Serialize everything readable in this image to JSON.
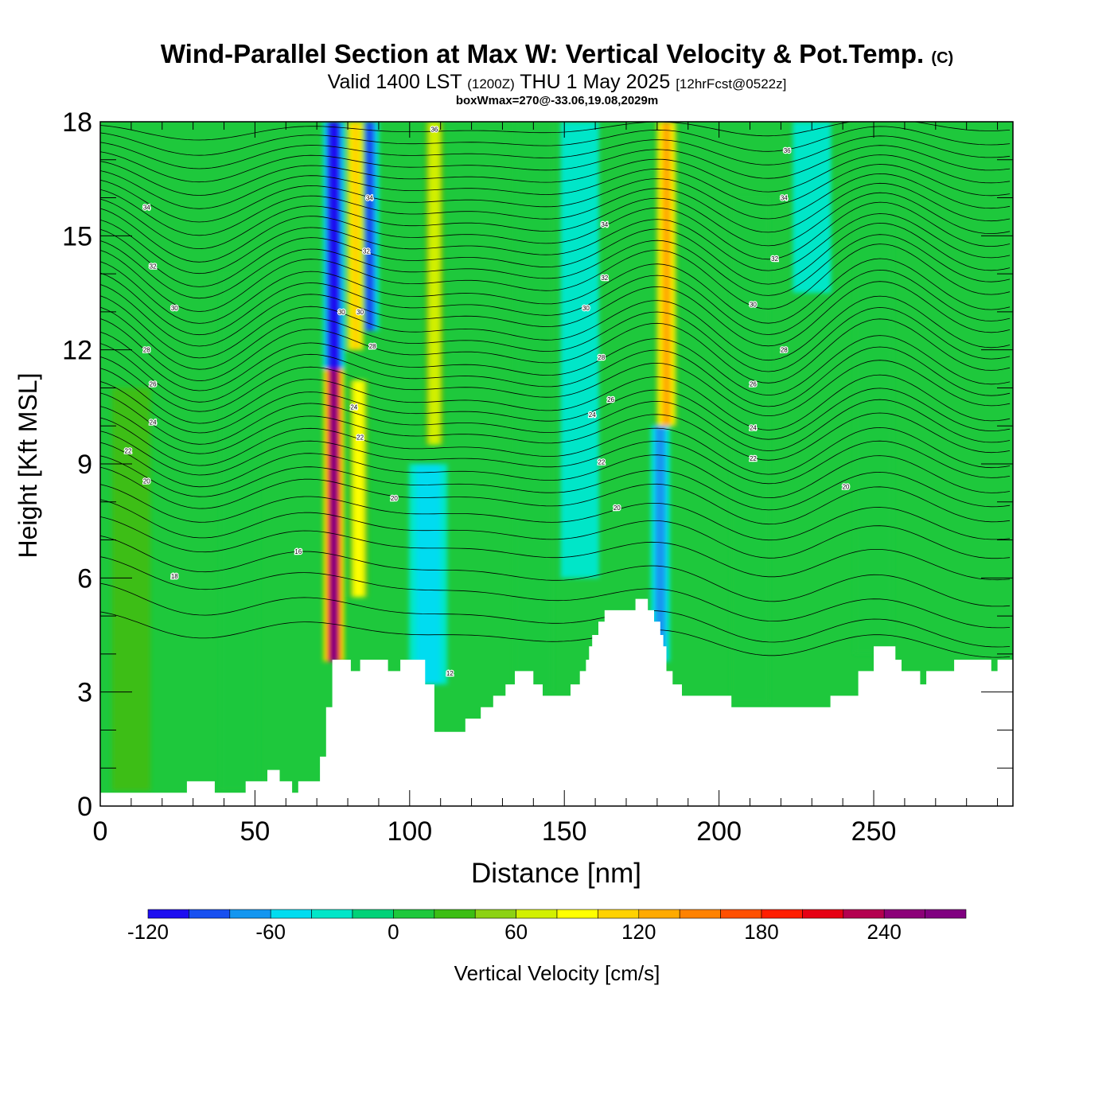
{
  "title": {
    "main": "Wind-Parallel Section at Max W: Vertical Velocity & Pot.Temp.",
    "main_mark": "(C)",
    "valid_a": "Valid 1400 LST",
    "valid_b": "(1200Z)",
    "valid_c": "THU 1 May 2025",
    "valid_d": "[12hrFcst@0522z]",
    "box": "boxWmax=270@-33.06,19.08,2029m"
  },
  "chart_data": {
    "type": "heatmap",
    "xlabel": "Distance [nm]",
    "ylabel": "Height [Kft MSL]",
    "xlim": [
      0,
      295
    ],
    "ylim": [
      0,
      18
    ],
    "x_ticks": [
      "0",
      "50",
      "100",
      "150",
      "200",
      "250"
    ],
    "x_tick_values": [
      0,
      50,
      100,
      150,
      200,
      250
    ],
    "y_ticks": [
      "0",
      "3",
      "6",
      "9",
      "12",
      "15",
      "18"
    ],
    "y_tick_values": [
      0,
      3,
      6,
      9,
      12,
      15,
      18
    ],
    "colorbar": {
      "label": "Vertical Velocity [cm/s]",
      "min": -120,
      "step": 20,
      "tick_labels": [
        "-120",
        "-60",
        "0",
        "60",
        "120",
        "180",
        "240"
      ],
      "tick_values": [
        -120,
        -60,
        0,
        60,
        120,
        180,
        240
      ],
      "colors": [
        "#1e0ef0",
        "#1850f0",
        "#1496f0",
        "#00dcf0",
        "#00e6c8",
        "#00d278",
        "#1ec83c",
        "#3cbe14",
        "#8cd214",
        "#d2f000",
        "#ffff00",
        "#ffd200",
        "#ffaa00",
        "#ff8200",
        "#ff5000",
        "#ff1e00",
        "#e60014",
        "#b40050",
        "#8c0078",
        "#800080"
      ]
    },
    "terrain": [
      [
        0,
        0.35
      ],
      [
        28,
        0.35
      ],
      [
        28,
        0.65
      ],
      [
        37,
        0.65
      ],
      [
        37,
        0.35
      ],
      [
        47,
        0.35
      ],
      [
        47,
        0.65
      ],
      [
        54,
        0.65
      ],
      [
        54,
        0.95
      ],
      [
        58,
        0.95
      ],
      [
        58,
        0.65
      ],
      [
        62,
        0.65
      ],
      [
        62,
        0.35
      ],
      [
        64,
        0.35
      ],
      [
        64,
        0.65
      ],
      [
        71,
        0.65
      ],
      [
        71,
        1.3
      ],
      [
        73,
        1.3
      ],
      [
        73,
        2.6
      ],
      [
        75,
        2.6
      ],
      [
        75,
        3.85
      ],
      [
        81,
        3.85
      ],
      [
        81,
        3.55
      ],
      [
        84,
        3.55
      ],
      [
        84,
        3.85
      ],
      [
        93,
        3.85
      ],
      [
        93,
        3.55
      ],
      [
        97,
        3.55
      ],
      [
        97,
        3.85
      ],
      [
        105,
        3.85
      ],
      [
        105,
        3.2
      ],
      [
        108,
        3.2
      ],
      [
        108,
        1.95
      ],
      [
        118,
        1.95
      ],
      [
        118,
        2.3
      ],
      [
        123,
        2.3
      ],
      [
        123,
        2.6
      ],
      [
        127,
        2.6
      ],
      [
        127,
        2.9
      ],
      [
        131,
        2.9
      ],
      [
        131,
        3.2
      ],
      [
        134,
        3.2
      ],
      [
        134,
        3.55
      ],
      [
        140,
        3.55
      ],
      [
        140,
        3.2
      ],
      [
        143,
        3.2
      ],
      [
        143,
        2.9
      ],
      [
        152,
        2.9
      ],
      [
        152,
        3.2
      ],
      [
        155,
        3.2
      ],
      [
        155,
        3.55
      ],
      [
        157,
        3.55
      ],
      [
        157,
        3.85
      ],
      [
        158,
        3.85
      ],
      [
        158,
        4.2
      ],
      [
        159,
        4.2
      ],
      [
        159,
        4.5
      ],
      [
        161,
        4.5
      ],
      [
        161,
        4.85
      ],
      [
        163,
        4.85
      ],
      [
        163,
        5.15
      ],
      [
        173,
        5.15
      ],
      [
        173,
        5.45
      ],
      [
        177,
        5.45
      ],
      [
        177,
        5.15
      ],
      [
        179,
        5.15
      ],
      [
        179,
        4.85
      ],
      [
        181,
        4.85
      ],
      [
        181,
        4.5
      ],
      [
        182,
        4.5
      ],
      [
        182,
        4.2
      ],
      [
        183,
        4.2
      ],
      [
        183,
        3.55
      ],
      [
        185,
        3.55
      ],
      [
        185,
        3.2
      ],
      [
        188,
        3.2
      ],
      [
        188,
        2.9
      ],
      [
        204,
        2.9
      ],
      [
        204,
        2.6
      ],
      [
        236,
        2.6
      ],
      [
        236,
        2.9
      ],
      [
        245,
        2.9
      ],
      [
        245,
        3.55
      ],
      [
        250,
        3.55
      ],
      [
        250,
        4.2
      ],
      [
        257,
        4.2
      ],
      [
        257,
        3.85
      ],
      [
        259,
        3.85
      ],
      [
        259,
        3.55
      ],
      [
        265,
        3.55
      ],
      [
        265,
        3.2
      ],
      [
        267,
        3.2
      ],
      [
        267,
        3.55
      ],
      [
        276,
        3.55
      ],
      [
        276,
        3.85
      ],
      [
        288,
        3.85
      ],
      [
        288,
        3.55
      ],
      [
        290,
        3.55
      ],
      [
        290,
        3.85
      ],
      [
        295,
        3.85
      ]
    ],
    "vertical_velocity_features": [
      {
        "x": 75.5,
        "y_bottom": 3.8,
        "y_top": 11.5,
        "value": 270
      },
      {
        "x": 83.5,
        "y_bottom": 5.5,
        "y_top": 11.2,
        "value": 90
      },
      {
        "x": 75.5,
        "y_bottom": 11.0,
        "y_top": 18,
        "value": -120
      },
      {
        "x": 82.5,
        "y_bottom": 12.0,
        "y_top": 18,
        "value": 100
      },
      {
        "x": 87.0,
        "y_bottom": 12.5,
        "y_top": 18,
        "value": -80
      },
      {
        "x": 106.0,
        "y_bottom": 3.2,
        "y_top": 9.0,
        "value": -40
      },
      {
        "x": 108.0,
        "y_bottom": 9.5,
        "y_top": 18,
        "value": 70
      },
      {
        "x": 181.0,
        "y_bottom": 3.8,
        "y_top": 10.0,
        "value": -70
      },
      {
        "x": 183.0,
        "y_bottom": 10.0,
        "y_top": 18,
        "value": 130
      },
      {
        "x": 10.0,
        "y_bottom": 0.4,
        "y_top": 11.0,
        "value": 20
      },
      {
        "x": 45.0,
        "y_bottom": 0.4,
        "y_top": 14.0,
        "value": 15
      },
      {
        "x": 140.0,
        "y_bottom": 3.0,
        "y_top": 18,
        "value": 15
      },
      {
        "x": 210.0,
        "y_bottom": 2.7,
        "y_top": 16.0,
        "value": 18
      },
      {
        "x": 250.0,
        "y_bottom": 4.0,
        "y_top": 18,
        "value": 15
      },
      {
        "x": 230.0,
        "y_bottom": 13.5,
        "y_top": 18,
        "value": -25
      },
      {
        "x": 155.0,
        "y_bottom": 6.0,
        "y_top": 18,
        "value": -22
      }
    ],
    "pot_temp_labels": [
      {
        "x": 15,
        "y": 15.75,
        "text": "34"
      },
      {
        "x": 17,
        "y": 14.2,
        "text": "32"
      },
      {
        "x": 24,
        "y": 13.1,
        "text": "30"
      },
      {
        "x": 15,
        "y": 12.0,
        "text": "28"
      },
      {
        "x": 17,
        "y": 11.1,
        "text": "26"
      },
      {
        "x": 17,
        "y": 10.1,
        "text": "24"
      },
      {
        "x": 9,
        "y": 9.35,
        "text": "22"
      },
      {
        "x": 15,
        "y": 8.55,
        "text": "20"
      },
      {
        "x": 24,
        "y": 6.05,
        "text": "18"
      },
      {
        "x": 64,
        "y": 6.7,
        "text": "16"
      },
      {
        "x": 113,
        "y": 3.5,
        "text": "12"
      },
      {
        "x": 78,
        "y": 13.0,
        "text": "30"
      },
      {
        "x": 84,
        "y": 13.0,
        "text": "30"
      },
      {
        "x": 88,
        "y": 12.1,
        "text": "28"
      },
      {
        "x": 82,
        "y": 10.5,
        "text": "24"
      },
      {
        "x": 84,
        "y": 9.7,
        "text": "22"
      },
      {
        "x": 95,
        "y": 8.1,
        "text": "20"
      },
      {
        "x": 87,
        "y": 16.0,
        "text": "34"
      },
      {
        "x": 86,
        "y": 14.6,
        "text": "32"
      },
      {
        "x": 108,
        "y": 17.8,
        "text": "36"
      },
      {
        "x": 163,
        "y": 15.3,
        "text": "34"
      },
      {
        "x": 163,
        "y": 13.9,
        "text": "32"
      },
      {
        "x": 157,
        "y": 13.1,
        "text": "30"
      },
      {
        "x": 162,
        "y": 11.8,
        "text": "28"
      },
      {
        "x": 165,
        "y": 10.7,
        "text": "26"
      },
      {
        "x": 159,
        "y": 10.3,
        "text": "24"
      },
      {
        "x": 162,
        "y": 9.05,
        "text": "22"
      },
      {
        "x": 167,
        "y": 7.85,
        "text": "20"
      },
      {
        "x": 222,
        "y": 17.25,
        "text": "36"
      },
      {
        "x": 221,
        "y": 16.0,
        "text": "34"
      },
      {
        "x": 218,
        "y": 14.4,
        "text": "32"
      },
      {
        "x": 211,
        "y": 13.2,
        "text": "30"
      },
      {
        "x": 221,
        "y": 12.0,
        "text": "28"
      },
      {
        "x": 211,
        "y": 11.1,
        "text": "26"
      },
      {
        "x": 211,
        "y": 9.95,
        "text": "24"
      },
      {
        "x": 211,
        "y": 9.15,
        "text": "22"
      },
      {
        "x": 241,
        "y": 8.4,
        "text": "20"
      }
    ],
    "pot_temp_isentropes": [
      {
        "y_left": 17.7,
        "y_right": 17.9,
        "wave": 0.2
      },
      {
        "y_left": 17.4,
        "y_right": 17.6,
        "wave": 0.3
      },
      {
        "y_left": 17.1,
        "y_right": 17.3,
        "wave": 0.35
      },
      {
        "y_left": 16.8,
        "y_right": 17.0,
        "wave": 0.4
      },
      {
        "y_left": 16.5,
        "y_right": 16.7,
        "wave": 0.45
      },
      {
        "y_left": 16.2,
        "y_right": 16.4,
        "wave": 0.5
      },
      {
        "y_left": 15.9,
        "y_right": 16.1,
        "wave": 0.55
      },
      {
        "y_left": 15.6,
        "y_right": 15.8,
        "wave": 0.6
      },
      {
        "y_left": 15.3,
        "y_right": 15.5,
        "wave": 0.65
      },
      {
        "y_left": 15.0,
        "y_right": 15.2,
        "wave": 0.7
      },
      {
        "y_left": 14.7,
        "y_right": 14.9,
        "wave": 0.7
      },
      {
        "y_left": 14.4,
        "y_right": 14.6,
        "wave": 0.75
      },
      {
        "y_left": 14.1,
        "y_right": 14.3,
        "wave": 0.75
      },
      {
        "y_left": 13.8,
        "y_right": 14.0,
        "wave": 0.8
      },
      {
        "y_left": 13.5,
        "y_right": 13.6,
        "wave": 0.8
      },
      {
        "y_left": 13.2,
        "y_right": 13.3,
        "wave": 0.8
      },
      {
        "y_left": 12.9,
        "y_right": 13.0,
        "wave": 0.8
      },
      {
        "y_left": 12.6,
        "y_right": 12.6,
        "wave": 0.8
      },
      {
        "y_left": 12.3,
        "y_right": 12.3,
        "wave": 0.8
      },
      {
        "y_left": 12.0,
        "y_right": 12.0,
        "wave": 0.8
      },
      {
        "y_left": 11.7,
        "y_right": 11.6,
        "wave": 0.75
      },
      {
        "y_left": 11.4,
        "y_right": 11.3,
        "wave": 0.75
      },
      {
        "y_left": 11.1,
        "y_right": 11.0,
        "wave": 0.7
      },
      {
        "y_left": 10.8,
        "y_right": 10.6,
        "wave": 0.7
      },
      {
        "y_left": 10.5,
        "y_right": 10.3,
        "wave": 0.65
      },
      {
        "y_left": 10.2,
        "y_right": 10.0,
        "wave": 0.65
      },
      {
        "y_left": 9.9,
        "y_right": 9.7,
        "wave": 0.6
      },
      {
        "y_left": 9.6,
        "y_right": 9.3,
        "wave": 0.6
      },
      {
        "y_left": 9.3,
        "y_right": 9.0,
        "wave": 0.55
      },
      {
        "y_left": 9.0,
        "y_right": 8.6,
        "wave": 0.55
      },
      {
        "y_left": 8.7,
        "y_right": 8.2,
        "wave": 0.5
      },
      {
        "y_left": 8.4,
        "y_right": 7.8,
        "wave": 0.5
      },
      {
        "y_left": 8.0,
        "y_right": 7.3,
        "wave": 0.45
      },
      {
        "y_left": 7.6,
        "y_right": 6.8,
        "wave": 0.45
      },
      {
        "y_left": 7.2,
        "y_right": 6.2,
        "wave": 0.4
      },
      {
        "y_left": 6.7,
        "y_right": 5.5,
        "wave": 0.4
      },
      {
        "y_left": 6.2,
        "y_right": 4.9,
        "wave": 0.35
      },
      {
        "y_left": 5.5,
        "y_right": 4.4,
        "wave": 0.35
      },
      {
        "y_left": 4.8,
        "y_right": 4.1,
        "wave": 0.3
      }
    ]
  }
}
